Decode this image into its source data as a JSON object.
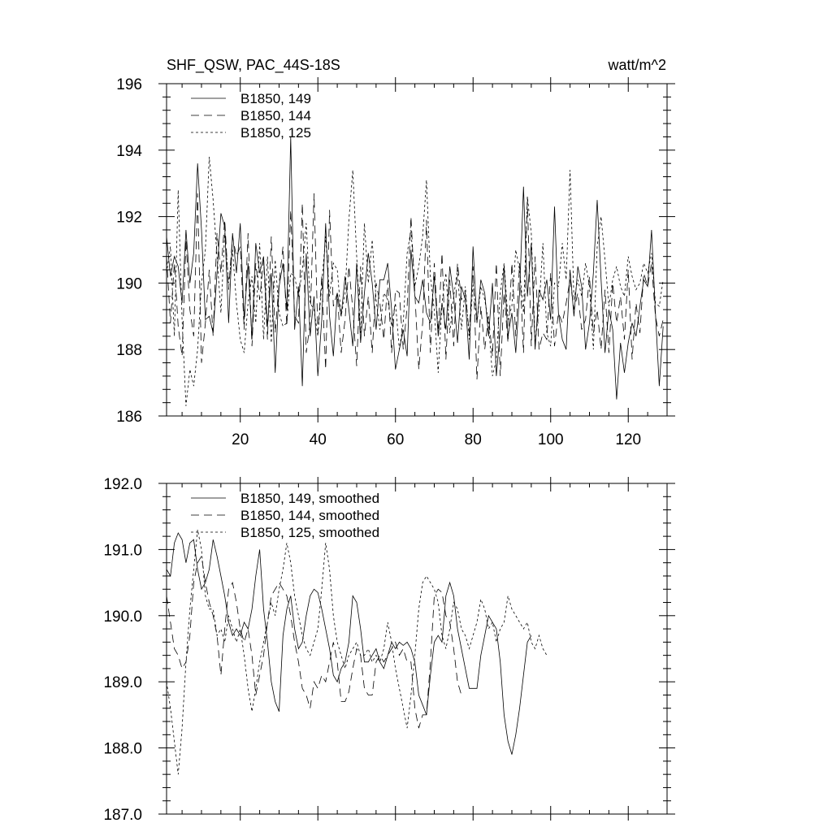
{
  "header": {
    "title": "SHF_QSW, PAC_44S-18S",
    "units": "watt/m^2"
  },
  "style": {
    "line_color": "#000000",
    "background": "#ffffff"
  },
  "chart_data": [
    {
      "type": "line",
      "title": "SHF_QSW, PAC_44S-18S",
      "units": "watt/m^2",
      "xlabel": "",
      "ylabel": "",
      "xlim": [
        1,
        130
      ],
      "ylim": [
        186,
        196
      ],
      "xticks": [
        20,
        40,
        60,
        80,
        100,
        120
      ],
      "xtick_labels": [
        "20",
        "40",
        "60",
        "80",
        "100",
        "120"
      ],
      "yticks": [
        186,
        188,
        190,
        192,
        194,
        196
      ],
      "ytick_labels": [
        "186",
        "188",
        "190",
        "192",
        "194",
        "196"
      ],
      "grid": false,
      "legend_position": "top-left",
      "series": [
        {
          "name": "B1850, 149",
          "dash": "solid",
          "values": [
            191.4,
            190.2,
            190.8,
            190.5,
            189.4,
            191.6,
            190.0,
            190.9,
            193.6,
            191.6,
            188.9,
            189.0,
            188.5,
            190.3,
            192.1,
            191.7,
            188.8,
            191.5,
            190.3,
            191.8,
            188.9,
            190.6,
            188.3,
            191.2,
            190.3,
            190.8,
            188.7,
            190.3,
            187.3,
            189.9,
            190.6,
            189.2,
            194.4,
            188.6,
            189.9,
            186.9,
            190.9,
            188.4,
            189.6,
            187.2,
            188.9,
            191.8,
            189.0,
            187.8,
            189.7,
            189.0,
            190.2,
            189.2,
            188.1,
            190.6,
            188.2,
            189.7,
            190.9,
            190.0,
            188.6,
            190.1,
            190.1,
            190.6,
            189.2,
            187.4,
            188.0,
            188.6,
            187.8,
            191.0,
            189.6,
            189.4,
            190.1,
            189.1,
            188.8,
            190.2,
            188.4,
            189.4,
            188.6,
            190.5,
            189.6,
            188.2,
            189.9,
            189.5,
            187.7,
            191.1,
            188.8,
            190.1,
            189.7,
            188.4,
            190.0,
            187.2,
            188.6,
            190.5,
            188.4,
            189.1,
            187.9,
            189.7,
            192.9,
            189.6,
            191.2,
            188.0,
            189.8,
            189.5,
            190.1,
            188.9,
            192.3,
            189.1,
            188.3,
            188.0,
            190.4,
            189.0,
            190.5,
            189.9,
            188.0,
            188.8,
            190.3,
            192.5,
            190.1,
            187.9,
            189.2,
            188.6,
            186.5,
            188.2,
            187.3,
            188.2,
            188.8,
            188.4,
            189.3,
            190.1,
            189.9,
            191.6,
            189.1,
            186.9,
            188.7
          ]
        },
        {
          "name": "B1850, 144",
          "dash": "long",
          "values": [
            190.8,
            188.8,
            190.6,
            188.7,
            187.8,
            191.3,
            189.2,
            188.4,
            192.7,
            187.6,
            188.8,
            190.4,
            188.4,
            191.5,
            190.3,
            191.9,
            189.8,
            191.4,
            190.8,
            191.1,
            188.6,
            191.5,
            188.1,
            190.6,
            189.5,
            190.7,
            188.3,
            191.4,
            188.5,
            190.0,
            191.1,
            188.7,
            192.2,
            189.0,
            188.8,
            192.4,
            187.9,
            188.8,
            192.7,
            188.5,
            190.2,
            187.4,
            192.2,
            189.3,
            189.7,
            187.9,
            188.9,
            190.5,
            189.2,
            187.5,
            190.5,
            188.4,
            189.6,
            187.9,
            190.0,
            189.4,
            188.3,
            190.1,
            187.9,
            189.8,
            189.7,
            188.0,
            189.3,
            192.0,
            189.7,
            187.4,
            188.8,
            191.9,
            187.9,
            190.6,
            188.5,
            190.9,
            187.7,
            190.1,
            188.1,
            190.6,
            189.5,
            189.7,
            188.5,
            190.5,
            187.1,
            189.3,
            188.0,
            189.0,
            187.8,
            190.6,
            187.2,
            189.7,
            188.2,
            190.6,
            188.4,
            190.6,
            187.9,
            192.6,
            188.1,
            190.8,
            188.0,
            188.5,
            188.3,
            190.3,
            188.1,
            189.1,
            188.8,
            189.4,
            190.1,
            189.2,
            189.7,
            188.6,
            188.9,
            190.2,
            188.5,
            189.2,
            188.0,
            189.8,
            187.9,
            190.0,
            188.8,
            189.6,
            188.3,
            190.4,
            187.7,
            189.4,
            188.5,
            190.3,
            189.9,
            190.6,
            189.0,
            188.4,
            188.9
          ]
        },
        {
          "name": "B1850, 125",
          "dash": "short",
          "values": [
            190.3,
            191.1,
            188.4,
            192.8,
            188.9,
            186.3,
            187.4,
            186.9,
            188.0,
            190.0,
            191.0,
            193.8,
            192.5,
            190.8,
            189.1,
            191.5,
            190.0,
            191.0,
            189.4,
            188.3,
            187.9,
            189.4,
            190.2,
            188.8,
            191.2,
            188.3,
            190.8,
            188.2,
            190.7,
            189.1,
            188.7,
            188.8,
            190.3,
            190.2,
            189.6,
            190.4,
            191.8,
            189.4,
            189.2,
            188.4,
            190.0,
            191.4,
            189.6,
            190.6,
            190.4,
            189.0,
            189.7,
            191.9,
            193.4,
            190.8,
            188.5,
            191.8,
            190.0,
            191.3,
            189.5,
            188.6,
            189.7,
            189.5,
            188.7,
            189.4,
            188.0,
            188.8,
            190.9,
            191.6,
            189.9,
            190.5,
            191.4,
            193.1,
            190.2,
            189.2,
            187.3,
            189.4,
            190.3,
            188.5,
            189.6,
            190.4,
            188.6,
            189.9,
            188.3,
            190.0,
            188.8,
            189.9,
            189.5,
            188.8,
            187.2,
            187.7,
            189.7,
            190.6,
            188.9,
            189.3,
            191.0,
            190.4,
            189.1,
            192.6,
            191.5,
            188.2,
            189.2,
            191.2,
            188.5,
            188.1,
            190.0,
            189.9,
            191.2,
            190.1,
            193.4,
            189.5,
            190.1,
            189.6,
            190.6,
            189.9,
            188.0,
            191.1,
            192.0,
            190.7,
            189.3,
            190.1,
            190.5,
            189.9,
            189.6,
            190.8,
            190.2,
            189.8,
            190.0,
            190.6,
            190.3,
            190.9,
            189.4,
            189.3,
            190.1
          ]
        }
      ]
    },
    {
      "type": "line",
      "title": "",
      "xlabel": "",
      "ylabel": "",
      "xlim": [
        1,
        130
      ],
      "ylim": [
        187.0,
        192.0
      ],
      "xticks": [
        20,
        40,
        60,
        80,
        100,
        120
      ],
      "xtick_labels": [],
      "yticks": [
        187.0,
        188.0,
        189.0,
        190.0,
        191.0,
        192.0
      ],
      "ytick_labels": [
        "187.0",
        "188.0",
        "189.0",
        "190.0",
        "191.0",
        "192.0"
      ],
      "grid": false,
      "legend_position": "top-left",
      "series": [
        {
          "name": "B1850, 149, smoothed",
          "dash": "solid",
          "x_start": 1,
          "values": [
            190.7,
            190.6,
            191.1,
            191.25,
            191.15,
            190.8,
            191.1,
            191.15,
            190.7,
            190.4,
            190.5,
            190.7,
            191.15,
            190.9,
            190.6,
            190.3,
            189.9,
            189.7,
            189.8,
            189.7,
            189.9,
            189.8,
            190.1,
            190.6,
            191.0,
            190.1,
            189.6,
            189.0,
            188.7,
            188.55,
            189.7,
            190.1,
            190.3,
            189.8,
            189.5,
            189.6,
            190.0,
            190.3,
            190.4,
            190.35,
            190.1,
            189.8,
            189.5,
            189.1,
            189.0,
            189.2,
            189.3,
            189.6,
            190.3,
            190.2,
            189.8,
            189.3,
            189.3,
            189.4,
            189.5,
            189.3,
            189.2,
            189.4,
            189.6,
            189.5,
            189.6,
            189.55,
            189.6,
            189.5,
            189.3,
            188.8,
            188.65,
            188.5,
            189.1,
            189.6,
            189.7,
            189.6,
            190.3,
            190.5,
            190.3,
            189.8,
            189.5,
            189.2,
            188.9,
            188.9,
            188.9,
            189.4,
            189.7,
            190.0,
            189.9,
            189.8,
            189.3,
            188.5,
            188.1,
            187.9,
            188.2,
            188.6,
            189.1,
            189.6,
            189.7
          ]
        },
        {
          "name": "B1850, 144, smoothed",
          "dash": "long",
          "x_start": 1,
          "values": [
            190.3,
            189.9,
            189.5,
            189.4,
            189.2,
            189.3,
            189.7,
            190.5,
            190.8,
            190.9,
            190.5,
            190.2,
            190.0,
            189.7,
            189.1,
            189.8,
            190.4,
            190.5,
            190.2,
            189.8,
            189.6,
            189.8,
            189.4,
            188.8,
            189.1,
            189.4,
            189.9,
            190.3,
            190.4,
            190.5,
            190.4,
            190.3,
            190.0,
            189.6,
            189.3,
            188.9,
            188.8,
            188.6,
            189.0,
            188.9,
            189.1,
            189.0,
            189.3,
            189.6,
            189.3,
            188.7,
            188.7,
            188.85,
            189.2,
            189.5,
            189.4,
            188.9,
            188.8,
            188.8,
            189.3,
            189.4,
            189.3,
            189.4,
            189.5,
            189.6,
            189.4,
            189.5,
            189.3,
            189.3,
            188.6,
            188.3,
            188.5,
            188.5,
            189.3,
            190.3,
            190.4,
            190.35,
            190.0,
            189.9,
            189.5,
            189.0,
            188.8
          ]
        },
        {
          "name": "B1850, 125, smoothed",
          "dash": "short",
          "x_start": 1,
          "values": [
            189.0,
            188.6,
            188.1,
            187.6,
            188.3,
            189.3,
            190.1,
            190.7,
            191.3,
            191.0,
            190.3,
            190.1,
            190.1,
            189.7,
            189.8,
            189.6,
            190.0,
            189.8,
            189.6,
            189.8,
            189.4,
            188.9,
            188.55,
            188.9,
            189.3,
            189.6,
            189.9,
            190.2,
            190.0,
            190.4,
            190.7,
            191.1,
            190.8,
            190.3,
            190.0,
            189.7,
            189.5,
            189.4,
            189.6,
            189.8,
            190.4,
            191.1,
            190.7,
            190.0,
            189.6,
            189.4,
            189.2,
            189.4,
            189.5,
            189.6,
            189.4,
            189.4,
            189.5,
            189.3,
            189.4,
            189.3,
            189.5,
            189.9,
            189.6,
            189.2,
            188.9,
            188.6,
            188.3,
            188.8,
            189.4,
            190.1,
            190.5,
            190.6,
            190.5,
            190.4,
            190.2,
            189.7,
            189.5,
            189.8,
            190.2,
            190.1,
            189.8,
            189.7,
            189.5,
            189.7,
            189.9,
            190.25,
            190.1,
            189.8,
            189.9,
            189.6,
            189.8,
            189.9,
            190.3,
            190.1,
            190.0,
            189.9,
            189.8,
            189.9,
            189.6,
            189.5,
            189.7,
            189.5,
            189.4
          ]
        }
      ]
    }
  ]
}
